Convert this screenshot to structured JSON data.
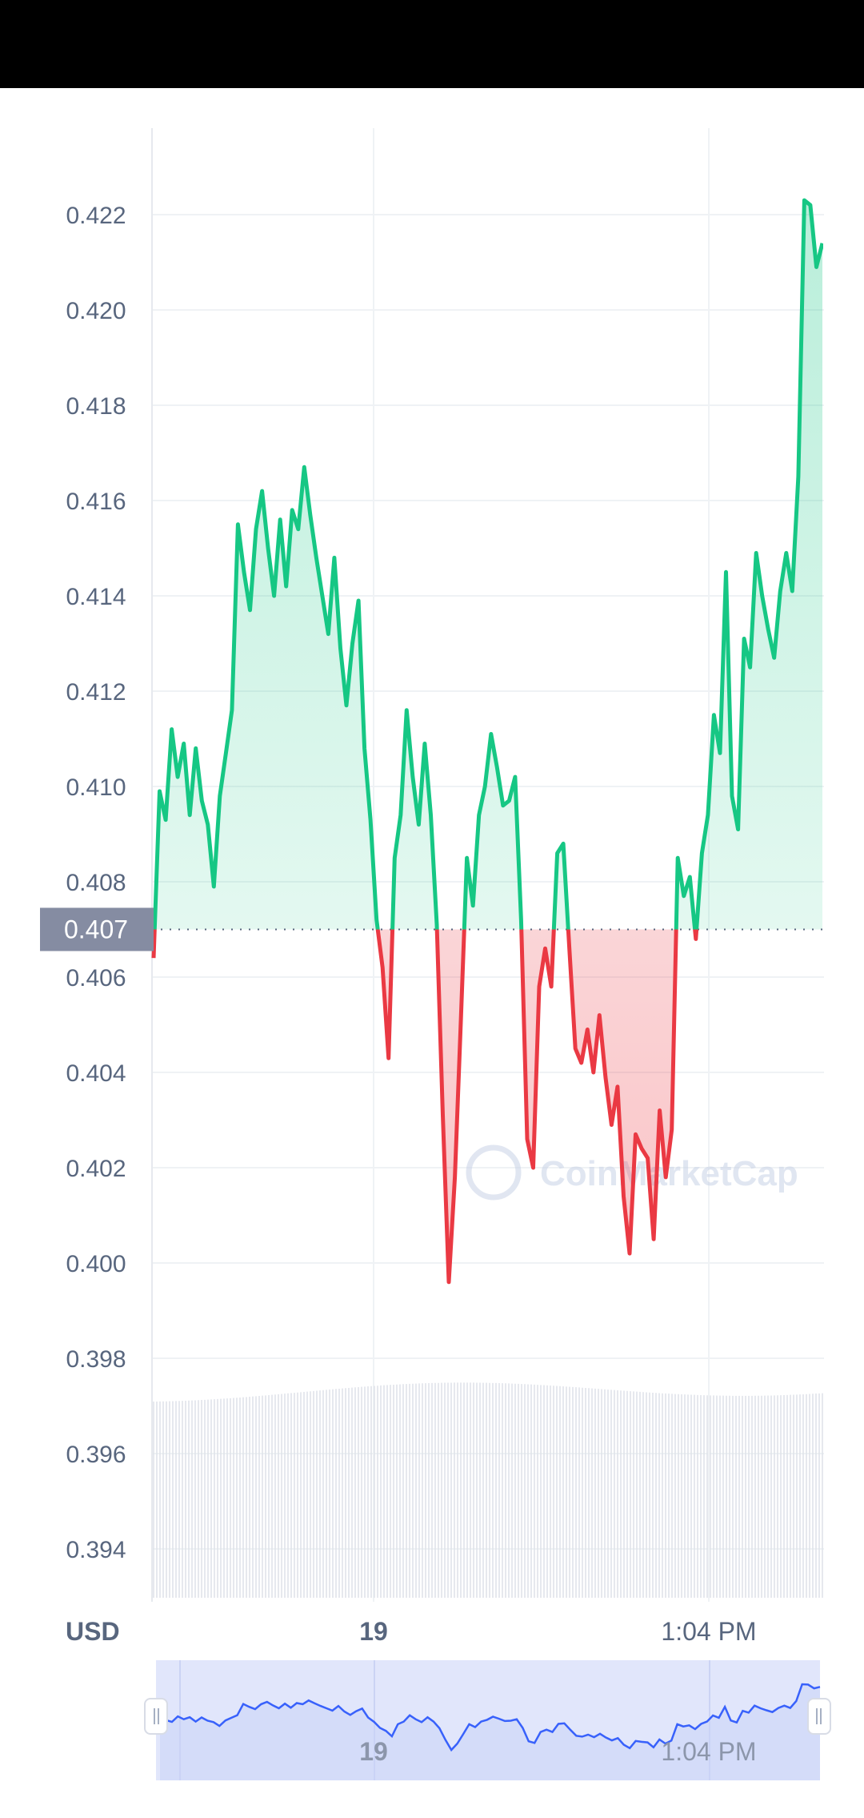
{
  "chart_data": {
    "type": "line",
    "currency_label": "USD",
    "y_ticks": [
      "0.422",
      "0.420",
      "0.418",
      "0.416",
      "0.414",
      "0.412",
      "0.410",
      "0.408",
      "0.406",
      "0.404",
      "0.402",
      "0.400",
      "0.398",
      "0.396",
      "0.394"
    ],
    "x_ticks": [
      "19",
      "1:04 PM"
    ],
    "ylim": [
      0.393,
      0.4245
    ],
    "reference_value": 0.407,
    "reference_label": "0.407",
    "grid": true,
    "watermark": "CoinMarketCap",
    "series": [
      {
        "values": [
          0.4064,
          0.4099,
          0.4093,
          0.4112,
          0.4102,
          0.4109,
          0.4094,
          0.4108,
          0.4097,
          0.4092,
          0.4079,
          0.4098,
          0.4107,
          0.4116,
          0.4155,
          0.4145,
          0.4137,
          0.4154,
          0.4162,
          0.415,
          0.414,
          0.4156,
          0.4142,
          0.4158,
          0.4154,
          0.4167,
          0.4157,
          0.4148,
          0.414,
          0.4132,
          0.4148,
          0.4129,
          0.4117,
          0.413,
          0.4139,
          0.4108,
          0.4093,
          0.4072,
          0.4062,
          0.4043,
          0.4085,
          0.4094,
          0.4116,
          0.4102,
          0.4092,
          0.4109,
          0.4094,
          0.4071,
          0.4031,
          0.3996,
          0.4018,
          0.4051,
          0.4085,
          0.4075,
          0.4094,
          0.41,
          0.4111,
          0.4104,
          0.4096,
          0.4097,
          0.4102,
          0.4072,
          0.4026,
          0.402,
          0.4058,
          0.4066,
          0.4058,
          0.4086,
          0.4088,
          0.4066,
          0.4045,
          0.4042,
          0.4049,
          0.404,
          0.4052,
          0.4039,
          0.4029,
          0.4037,
          0.4014,
          0.4002,
          0.4027,
          0.4024,
          0.4022,
          0.4005,
          0.4032,
          0.4018,
          0.4028,
          0.4085,
          0.4077,
          0.4081,
          0.4068,
          0.4086,
          0.4094,
          0.4115,
          0.4107,
          0.4145,
          0.4098,
          0.4091,
          0.4131,
          0.4125,
          0.4149,
          0.414,
          0.4133,
          0.4127,
          0.4141,
          0.4149,
          0.4141,
          0.4165,
          0.4223,
          0.4222,
          0.4209,
          0.4214
        ]
      }
    ]
  },
  "navigator": {
    "x_ticks": [
      "19",
      "1:04 PM"
    ]
  },
  "colors": {
    "up": "#16c784",
    "down": "#ea3943",
    "grid": "#eff2f5",
    "label_bg": "#858ca2",
    "navigator_fill": "#e1e6fb",
    "navigator_line": "#3861fb"
  }
}
